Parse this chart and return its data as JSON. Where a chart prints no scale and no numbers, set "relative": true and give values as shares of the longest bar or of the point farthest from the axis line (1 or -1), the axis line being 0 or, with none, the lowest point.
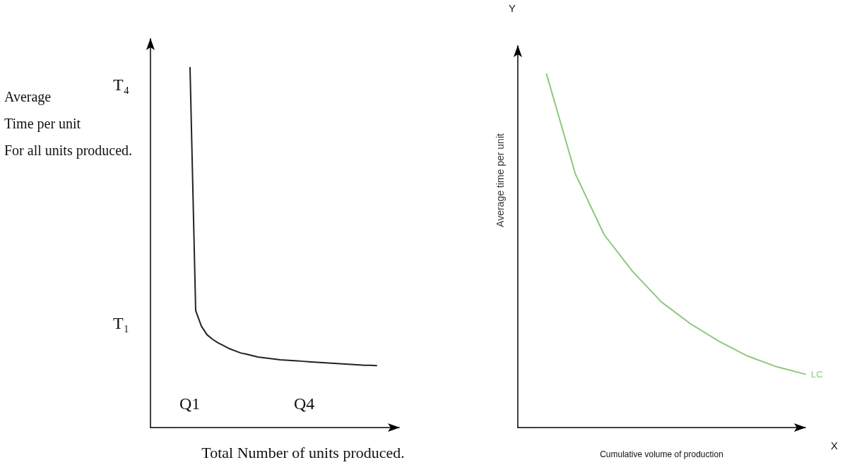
{
  "chart_data": [
    {
      "type": "line",
      "relative": true,
      "xlabel": "Total Number of units produced.",
      "ylabel": "Average\nTime per unit\nFor all units produced.",
      "categories": [
        null,
        null,
        null,
        null,
        null,
        null,
        null,
        null,
        null,
        null,
        null,
        null,
        null,
        null,
        null,
        null,
        null,
        null,
        null,
        null,
        null,
        null,
        null,
        null,
        null,
        null,
        null,
        null,
        null,
        null,
        null,
        null,
        null,
        null,
        null,
        null,
        null,
        null,
        null,
        null,
        null,
        null,
        null,
        null,
        null
      ],
      "series": [
        {
          "color": "#222222",
          "values": [
            null,
            null,
            null,
            null,
            null,
            null,
            null,
            1.0,
            0.325,
            0.282,
            0.258,
            0.245,
            0.235,
            0.227,
            0.219,
            0.213,
            0.207,
            0.204,
            0.2,
            0.196,
            0.194,
            0.192,
            0.19,
            0.188,
            0.187,
            0.186,
            0.185,
            0.184,
            0.183,
            0.182,
            0.181,
            0.18,
            0.179,
            0.178,
            0.177,
            0.176,
            0.175,
            0.174,
            0.173,
            0.173,
            0.172,
            null,
            null,
            null,
            null
          ]
        }
      ],
      "annotations": [
        "T₄",
        "T₁",
        "Q1",
        "Q4"
      ],
      "grid": false,
      "legend": false,
      "marker": "none",
      "line_style": "solid"
    },
    {
      "type": "line",
      "relative": true,
      "xlabel": "Cumulative volume of production",
      "ylabel": "Average time per unit",
      "categories": [
        null,
        null,
        null,
        null,
        null,
        null,
        null,
        null,
        null,
        null,
        null
      ],
      "series": [
        {
          "name": "LC",
          "color": "#8cc87c",
          "values": [
            null,
            1.0,
            0.718,
            0.546,
            0.441,
            0.355,
            0.294,
            0.244,
            0.202,
            0.172,
            0.151
          ]
        }
      ],
      "annotations": [
        "Y",
        "X"
      ],
      "grid": false,
      "legend": false,
      "marker": "none",
      "line_style": "solid"
    }
  ]
}
